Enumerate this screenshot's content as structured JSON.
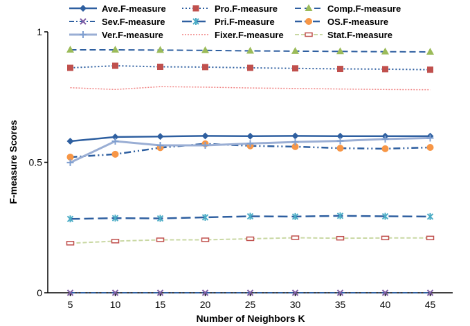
{
  "chart_data": {
    "type": "line",
    "xlabel": "Number of Neighbors K",
    "ylabel": "F-measure Scores",
    "x": [
      5,
      10,
      15,
      20,
      25,
      30,
      35,
      40,
      45
    ],
    "xlim": [
      2.5,
      47.5
    ],
    "ylim": [
      0,
      1
    ],
    "y_ticks": [
      0,
      0.5,
      1
    ],
    "y_tick_labels": [
      "0",
      "0.5",
      "1"
    ],
    "grid": false,
    "legend_position": "top",
    "series": [
      {
        "name": "Ave.F-measure",
        "color": "#2e5fa0",
        "dash": "",
        "width": 2.5,
        "marker": "diamond",
        "values": [
          0.581,
          0.597,
          0.599,
          0.601,
          0.6,
          0.601,
          0.6,
          0.6,
          0.6
        ]
      },
      {
        "name": "Pro.F-measure",
        "color": "#2e5fa0",
        "dash": "2 3",
        "width": 2,
        "marker": "square",
        "values": [
          0.862,
          0.87,
          0.866,
          0.865,
          0.862,
          0.86,
          0.858,
          0.857,
          0.855
        ]
      },
      {
        "name": "Comp.F-measure",
        "color": "#2e5fa0",
        "dash": "9 5",
        "width": 2,
        "marker": "triangle",
        "values": [
          0.931,
          0.931,
          0.93,
          0.929,
          0.927,
          0.926,
          0.925,
          0.924,
          0.923
        ]
      },
      {
        "name": "Sev.F-measure",
        "color": "#2e5fa0",
        "dash": "7 3 2 3",
        "width": 2,
        "marker": "x",
        "values": [
          0,
          0,
          0,
          0,
          0,
          0,
          0,
          0,
          0
        ]
      },
      {
        "name": "Pri.F-measure",
        "color": "#2e5fa0",
        "dash": "14 6",
        "width": 2.5,
        "marker": "star",
        "values": [
          0.283,
          0.286,
          0.285,
          0.289,
          0.293,
          0.292,
          0.295,
          0.293,
          0.292
        ]
      },
      {
        "name": "OS.F-measure",
        "color": "#2e5fa0",
        "dash": "10 4 2 4 2 4",
        "width": 2.5,
        "marker": "circle",
        "values": [
          0.52,
          0.531,
          0.556,
          0.571,
          0.563,
          0.56,
          0.554,
          0.552,
          0.557
        ]
      },
      {
        "name": "Ver.F-measure",
        "color": "#9aaed4",
        "dash": "",
        "width": 3,
        "marker": "plus",
        "values": [
          0.499,
          0.581,
          0.565,
          0.565,
          0.572,
          0.578,
          0.582,
          0.589,
          0.593
        ]
      },
      {
        "name": "Fixer.F-measure",
        "color": "#f08080",
        "dash": "2 2",
        "width": 1.5,
        "marker": "none",
        "values": [
          0.786,
          0.779,
          0.79,
          0.788,
          0.785,
          0.783,
          0.781,
          0.779,
          0.778
        ]
      },
      {
        "name": "Stat.F-measure",
        "color": "#c9d8a3",
        "dash": "6 3",
        "width": 2,
        "marker": "dash",
        "values": [
          0.19,
          0.198,
          0.203,
          0.203,
          0.207,
          0.211,
          0.209,
          0.21,
          0.21
        ]
      }
    ]
  }
}
